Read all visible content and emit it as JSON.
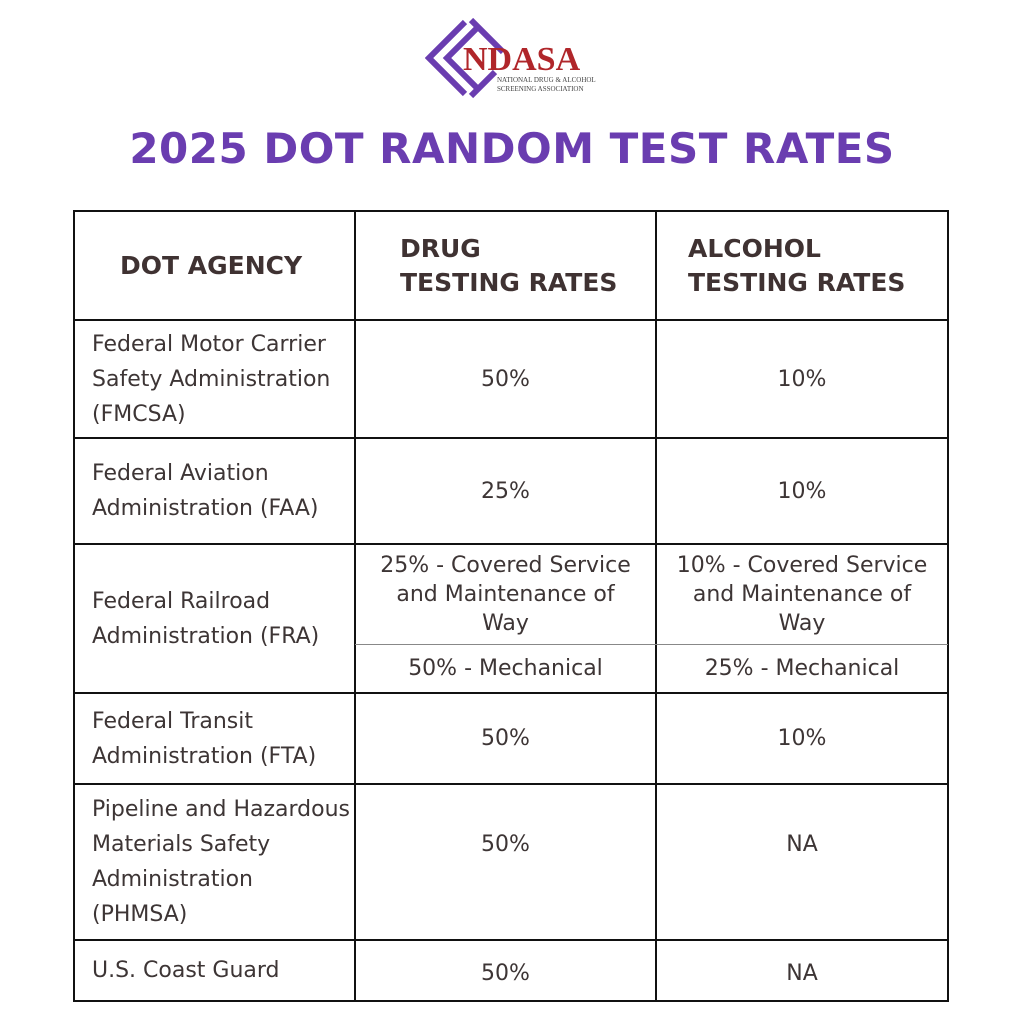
{
  "logo": {
    "name": "NDASA",
    "subtitle_line1": "NATIONAL DRUG & ALCOHOL",
    "subtitle_line2": "SCREENING ASSOCIATION",
    "colors": {
      "diamond": "#6a3db0",
      "text": "#b0262a"
    }
  },
  "title": "2025 DOT RANDOM TEST RATES",
  "table": {
    "headers": [
      "DOT AGENCY",
      "DRUG\nTESTING RATES",
      "ALCOHOL\nTESTING RATES"
    ],
    "rows": [
      {
        "agency": "Federal Motor Carrier Safety Administration (FMCSA)",
        "drug": "50%",
        "alcohol": "10%"
      },
      {
        "agency": "Federal Aviation Administration (FAA)",
        "drug": "25%",
        "alcohol": "10%"
      },
      {
        "agency": "Federal Railroad Administration (FRA)",
        "drug": "25% - Covered Service and Maintenance of Way",
        "alcohol": "10% - Covered Service and Maintenance of Way",
        "drug_sub": "50% - Mechanical",
        "alcohol_sub": "25% - Mechanical"
      },
      {
        "agency": "Federal Transit Administration (FTA)",
        "drug": "50%",
        "alcohol": "10%"
      },
      {
        "agency": "Pipeline and Hazardous Materials Safety Administration (PHMSA)",
        "drug": "50%",
        "alcohol": "NA"
      },
      {
        "agency": "U.S. Coast Guard",
        "drug": "50%",
        "alcohol": "NA"
      }
    ]
  }
}
